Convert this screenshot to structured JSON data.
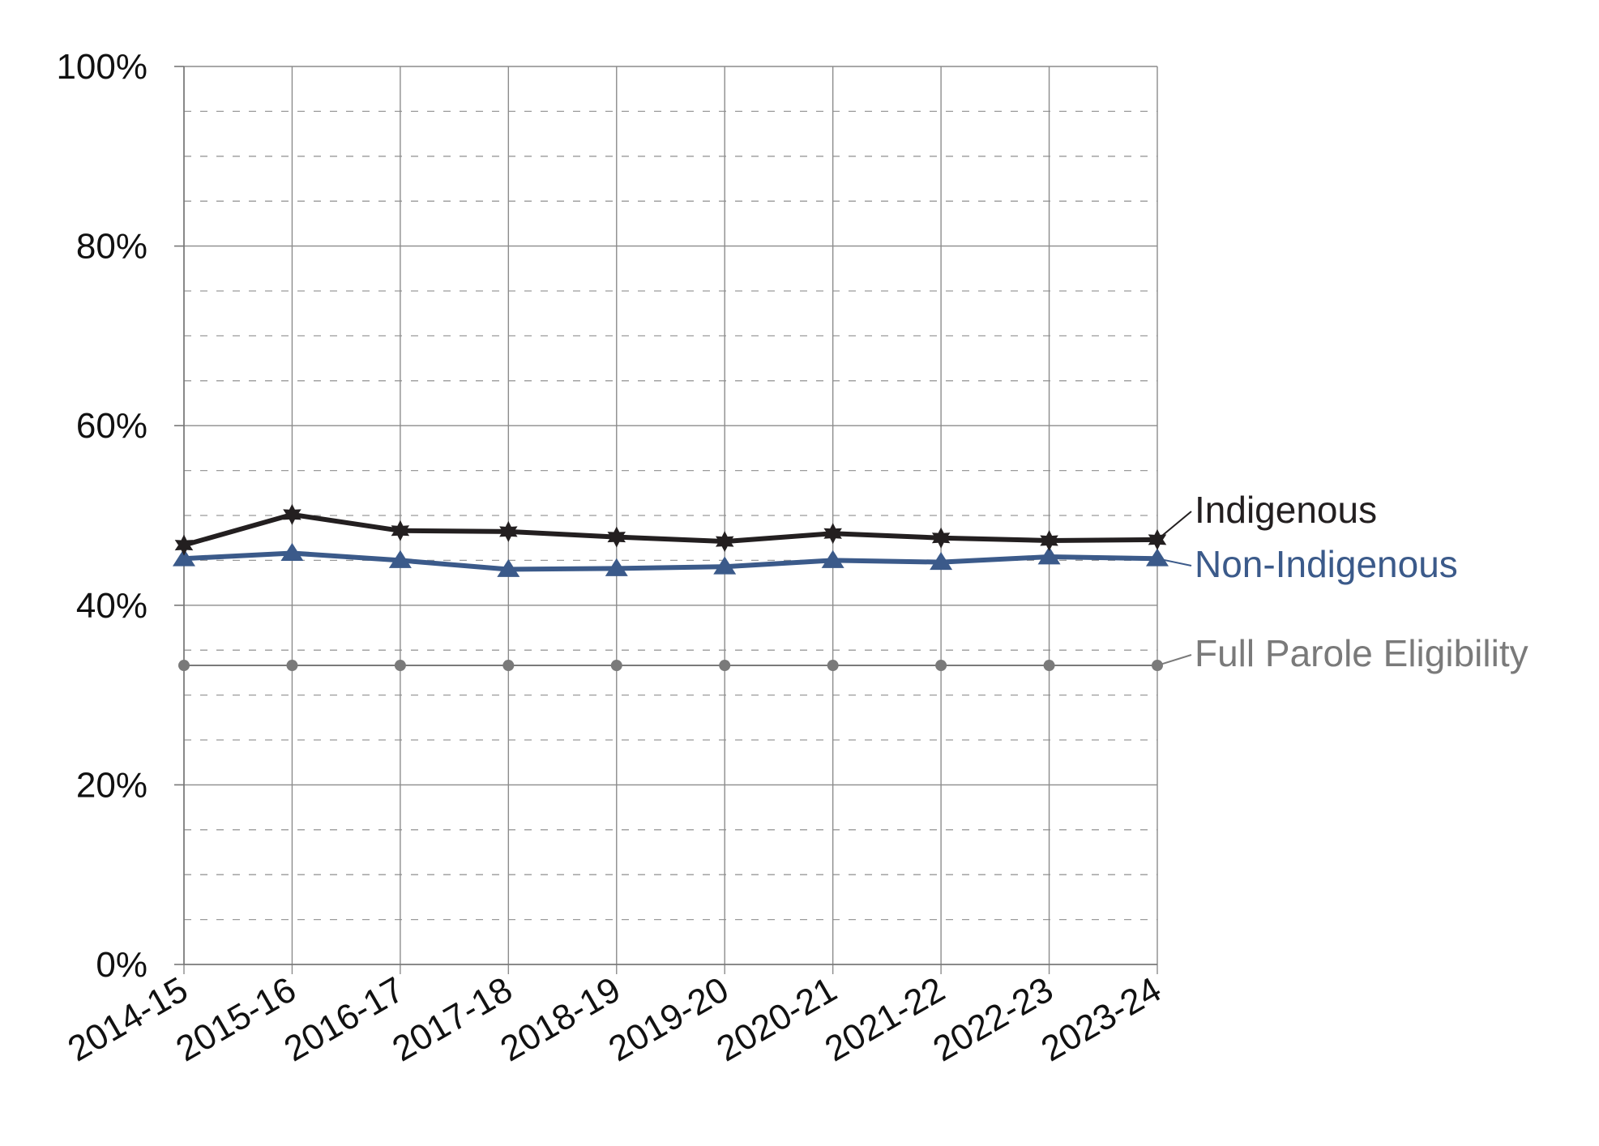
{
  "chart_data": {
    "type": "line",
    "categories": [
      "2014-15",
      "2015-16",
      "2016-17",
      "2017-18",
      "2018-19",
      "2019-20",
      "2020-21",
      "2021-22",
      "2022-23",
      "2023-24"
    ],
    "ylim": [
      0,
      100
    ],
    "y_ticks": [
      0,
      20,
      40,
      60,
      80,
      100
    ],
    "y_tick_labels": [
      "0%",
      "20%",
      "40%",
      "60%",
      "80%",
      "100%"
    ],
    "grid": "major solid, minor dashed every 5%",
    "legend": "direct labels at right end of lines",
    "series": [
      {
        "name": "Indigenous",
        "values": [
          46.7,
          50.1,
          48.3,
          48.2,
          47.6,
          47.1,
          48.0,
          47.5,
          47.2,
          47.3
        ],
        "color": "#231f20",
        "marker": "star"
      },
      {
        "name": "Non-Indigenous",
        "values": [
          45.2,
          45.8,
          45.0,
          44.0,
          44.1,
          44.3,
          45.0,
          44.8,
          45.4,
          45.2
        ],
        "color": "#3b5a8a",
        "marker": "triangle"
      },
      {
        "name": "Full Parole Eligibility",
        "values": [
          33.3,
          33.3,
          33.3,
          33.3,
          33.3,
          33.3,
          33.3,
          33.3,
          33.3,
          33.3
        ],
        "color": "#7a7a7a",
        "marker": "circle"
      }
    ]
  }
}
